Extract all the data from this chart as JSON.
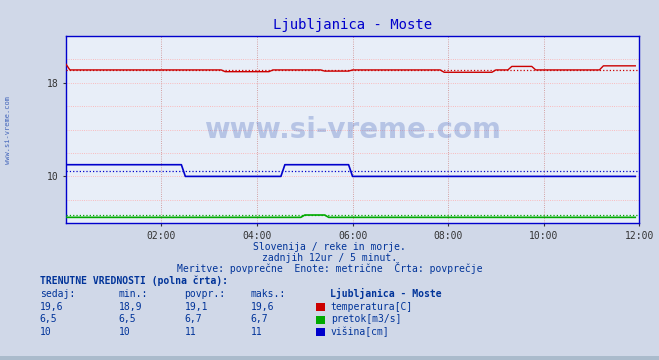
{
  "title": "Ljubljanica - Moste",
  "title_color": "#0000cc",
  "bg_color": "#d0d8e8",
  "plot_bg_color": "#e8eef8",
  "x_ticks": [
    "02:00",
    "04:00",
    "06:00",
    "08:00",
    "10:00",
    "12:00"
  ],
  "x_tick_positions": [
    24,
    48,
    72,
    96,
    120,
    144
  ],
  "x_total_points": 144,
  "temp_avg_dotted": 19.1,
  "temp_min": 18.9,
  "temp_max": 19.6,
  "temp_current": 19.6,
  "pretok_avg_dotted": 6.7,
  "pretok_min": 6.5,
  "pretok_max": 6.7,
  "pretok_current": 6.5,
  "visina_avg_dotted": 10.5,
  "visina_min": 10,
  "visina_max": 11,
  "visina_current": 10,
  "ymin": 6,
  "ymax": 22,
  "yticks": [
    10,
    18
  ],
  "y_grid": [
    6,
    8,
    10,
    12,
    14,
    16,
    18,
    20,
    22
  ],
  "temp_color": "#cc0000",
  "pretok_color": "#00aa00",
  "visina_color": "#0000cc",
  "watermark": "www.si-vreme.com",
  "subtitle1": "Slovenija / reke in morje.",
  "subtitle2": "zadnjih 12ur / 5 minut.",
  "subtitle3": "Meritve: povprečne  Enote: metrične  Črta: povprečje",
  "legend_title": "Ljubljanica - Moste",
  "table_label": "TRENUTNE VREDNOSTI (polna črta):",
  "col_headers": [
    "sedaj:",
    "min.:",
    "povpr.:",
    "maks.:"
  ],
  "temp_row": [
    "19,6",
    "18,9",
    "19,1",
    "19,6"
  ],
  "pretok_row": [
    "6,5",
    "6,5",
    "6,7",
    "6,7"
  ],
  "visina_row": [
    "10",
    "10",
    "11",
    "11"
  ],
  "temp_label": "temperatura[C]",
  "pretok_label": "pretok[m3/s]",
  "visina_label": "višina[cm]",
  "side_label": "www.si-vreme.com"
}
